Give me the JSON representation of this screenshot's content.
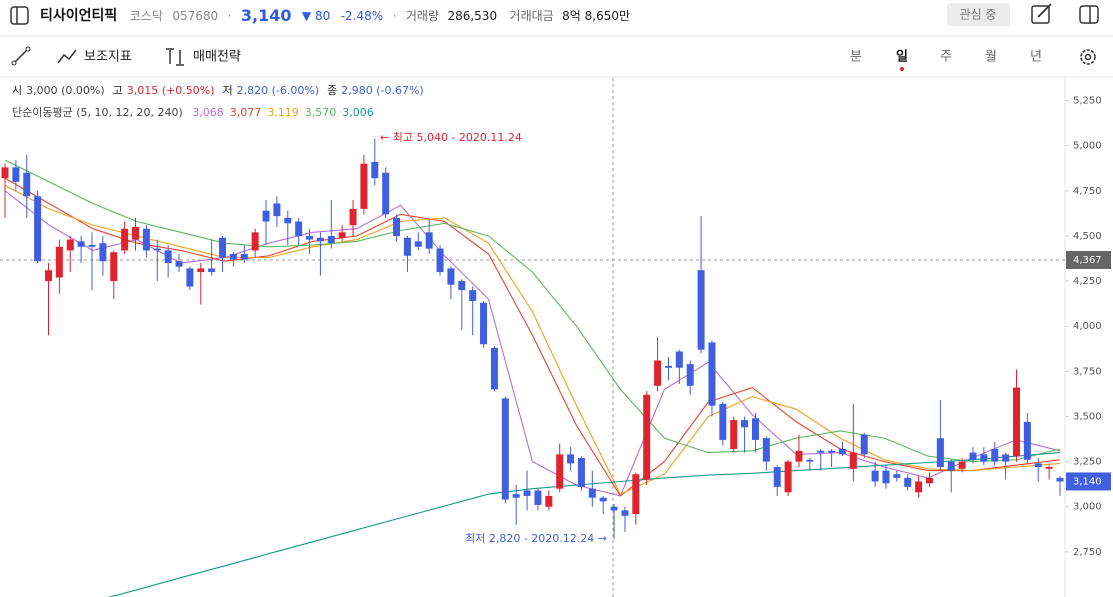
{
  "header": {
    "title": "티사이언티픽",
    "market": "코스닥",
    "code": "057680",
    "separator": "·",
    "price": "3,140",
    "change": "▼ 80",
    "change_rate": "-2.48%",
    "volume_label": "거래량",
    "volume": "286,530",
    "amount_label": "거래대금",
    "amount": "8억 8,650만",
    "watch_button": "관심 중"
  },
  "toolbar": {
    "indicators": "보조지표",
    "strategy": "매매전략",
    "periods": [
      "분",
      "일",
      "주",
      "월",
      "년"
    ]
  },
  "chart_data": {
    "type": "candlestick",
    "info": [
      {
        "label": "시",
        "value": "3,000 (0.00%)"
      },
      {
        "label": "고",
        "value": "3,015 (+0.50%)"
      },
      {
        "label": "저",
        "value": "2,820 (-6.00%)"
      },
      {
        "label": "종",
        "value": "2,980 (-0.67%)"
      }
    ],
    "ma_title": "단순이동평균 (5, 10, 12, 20, 240)",
    "up_color": "#e0242f",
    "down_color": "#3f5fe0",
    "candles": {
      "open": [
        4820,
        4880,
        4850,
        4720,
        4250,
        4270,
        4420,
        4470,
        4450,
        4460,
        4250,
        4420,
        4480,
        4540,
        4430,
        4420,
        4360,
        4320,
        4300,
        4320,
        4490,
        4400,
        4400,
        4420,
        4640,
        4680,
        4600,
        4580,
        4500,
        4490,
        4500,
        4490,
        4560,
        4650,
        4910,
        4850,
        4600,
        4490,
        4470,
        4520,
        4430,
        4320,
        4250,
        4200,
        4130,
        3880,
        3600,
        3070,
        3090,
        3090,
        3000,
        3100,
        3290,
        3270,
        3100,
        3050,
        3000,
        2980,
        2960,
        3150,
        3670,
        3780,
        3860,
        3790,
        4310,
        3910,
        3570,
        3320,
        3480,
        3490,
        3380,
        3220,
        3080,
        3250,
        3260,
        3310,
        3310,
        3320,
        3210,
        3400,
        3200,
        3200,
        3180,
        3160,
        3080,
        3130,
        3380,
        3250,
        3210,
        3300,
        3290,
        3320,
        3290,
        3280,
        3470,
        3240,
        3210,
        3160
      ],
      "high": [
        4900,
        4920,
        4950,
        4750,
        4350,
        4480,
        4500,
        4500,
        4520,
        4500,
        4420,
        4580,
        4600,
        4560,
        4480,
        4450,
        4400,
        4330,
        4350,
        4480,
        4500,
        4410,
        4450,
        4540,
        4700,
        4720,
        4640,
        4600,
        4540,
        4520,
        4700,
        4560,
        4700,
        4950,
        5040,
        4880,
        4620,
        4500,
        4520,
        4600,
        4450,
        4330,
        4260,
        4220,
        4140,
        3890,
        3610,
        3120,
        3200,
        3100,
        3090,
        3350,
        3330,
        3280,
        3200,
        3060,
        3015,
        3000,
        3190,
        3640,
        3940,
        3830,
        3870,
        3810,
        4610,
        3920,
        3580,
        3500,
        3500,
        3520,
        3390,
        3230,
        3260,
        3400,
        3270,
        3320,
        3320,
        3360,
        3570,
        3410,
        3250,
        3230,
        3200,
        3180,
        3170,
        3190,
        3590,
        3260,
        3270,
        3330,
        3330,
        3360,
        3300,
        3760,
        3520,
        3270,
        3230,
        3170
      ],
      "low": [
        4600,
        4750,
        4600,
        4350,
        3950,
        4180,
        4300,
        4350,
        4200,
        4280,
        4150,
        4400,
        4420,
        4380,
        4250,
        4270,
        4300,
        4200,
        4120,
        4280,
        4300,
        4330,
        4350,
        4380,
        4450,
        4550,
        4450,
        4450,
        4400,
        4280,
        4430,
        4470,
        4500,
        4620,
        4780,
        4600,
        4470,
        4300,
        4420,
        4400,
        4280,
        4150,
        3980,
        3950,
        3880,
        3640,
        3020,
        2900,
        2980,
        2980,
        2980,
        3080,
        3200,
        3090,
        3000,
        2960,
        2820,
        2860,
        2900,
        3120,
        3640,
        3700,
        3680,
        3620,
        3850,
        3500,
        3340,
        3300,
        3300,
        3300,
        3200,
        3060,
        3060,
        3220,
        3200,
        3200,
        3220,
        3280,
        3140,
        3270,
        3110,
        3100,
        3140,
        3090,
        3050,
        3110,
        3200,
        3080,
        3190,
        3240,
        3230,
        3230,
        3150,
        3250,
        3240,
        3140,
        3150,
        3060
      ],
      "close": [
        4880,
        4800,
        4720,
        4360,
        4310,
        4440,
        4480,
        4440,
        4440,
        4360,
        4410,
        4540,
        4550,
        4420,
        4420,
        4350,
        4330,
        4220,
        4320,
        4300,
        4380,
        4370,
        4370,
        4520,
        4580,
        4610,
        4570,
        4500,
        4480,
        4470,
        4460,
        4520,
        4650,
        4900,
        4820,
        4620,
        4500,
        4390,
        4440,
        4430,
        4300,
        4230,
        4200,
        4140,
        3900,
        3650,
        3040,
        3050,
        3060,
        3010,
        3060,
        3290,
        3240,
        3110,
        3050,
        3030,
        2980,
        2950,
        3180,
        3620,
        3810,
        3770,
        3770,
        3670,
        3870,
        3560,
        3370,
        3480,
        3440,
        3370,
        3250,
        3110,
        3250,
        3310,
        3250,
        3300,
        3300,
        3290,
        3300,
        3290,
        3140,
        3130,
        3160,
        3110,
        3140,
        3160,
        3220,
        3200,
        3250,
        3260,
        3250,
        3250,
        3250,
        3660,
        3260,
        3220,
        3220,
        3140
      ]
    },
    "series": [
      {
        "color": "#b86fdc",
        "legend_value": {
          "value": 3068,
          "label": "3,068"
        },
        "values": [
          4750,
          4560,
          4420,
          4480,
          4350,
          4380,
          4460,
          4520,
          4540,
          4670,
          4390,
          4150,
          3250,
          3120,
          3060,
          3650,
          3800,
          3510,
          3290,
          3300,
          3220,
          3160,
          3270,
          3370,
          3310
        ]
      },
      {
        "color": "#e8452c",
        "legend_value": {
          "value": 3077,
          "label": "3,077"
        },
        "values": [
          4820,
          4680,
          4540,
          4460,
          4420,
          4360,
          4390,
          4470,
          4500,
          4620,
          4580,
          4400,
          3950,
          3450,
          3060,
          3250,
          3580,
          3660,
          3470,
          3320,
          3250,
          3200,
          3200,
          3230,
          3260
        ]
      },
      {
        "color": "#f0a020",
        "legend_value": {
          "value": 3119,
          "label": "3,119"
        },
        "values": [
          4780,
          4650,
          4560,
          4500,
          4440,
          4380,
          4380,
          4440,
          4480,
          4580,
          4600,
          4460,
          4080,
          3560,
          3070,
          3180,
          3500,
          3610,
          3540,
          3380,
          3260,
          3210,
          3200,
          3220,
          3240
        ]
      },
      {
        "color": "#5cb85c",
        "legend_value": {
          "value": 3570,
          "label": "3,570"
        },
        "values": [
          4920,
          4800,
          4680,
          4580,
          4520,
          4460,
          4440,
          4450,
          4470,
          4530,
          4570,
          4500,
          4300,
          4000,
          3650,
          3380,
          3300,
          3310,
          3380,
          3420,
          3380,
          3280,
          3250,
          3260,
          3320
        ]
      },
      {
        "color": "#16998a",
        "legend_value": {
          "value": 3006,
          "label": "3,006"
        },
        "values": [
          null,
          null,
          2475,
          2540,
          2607,
          2673,
          2740,
          2806,
          2872,
          2938,
          3004,
          3070,
          3100,
          3120,
          3140,
          3160,
          3175,
          3185,
          3200,
          3215,
          3230,
          3245,
          3260,
          3280,
          3300
        ]
      }
    ],
    "ylim": [
      2500,
      5375
    ],
    "yticks": [
      {
        "value": 2750,
        "label": "2,750"
      },
      {
        "value": 3000,
        "label": "3,000"
      },
      {
        "value": 3250,
        "label": "3,250"
      },
      {
        "value": 3500,
        "label": "3,500"
      },
      {
        "value": 3750,
        "label": "3,750"
      },
      {
        "value": 4000,
        "label": "4,000"
      },
      {
        "value": 4250,
        "label": "4,250"
      },
      {
        "value": 4500,
        "label": "4,500"
      },
      {
        "value": 4750,
        "label": "4,750"
      },
      {
        "value": 5000,
        "label": "5,000"
      },
      {
        "value": 5250,
        "label": "5,250"
      }
    ],
    "annotations": {
      "high": "← 최고 5,040 - 2020.11.24",
      "low": "최저 2,820 - 2020.12.24 →"
    },
    "current_price": {
      "value": 3140,
      "label": "3,140"
    },
    "crosshair": {
      "value": 4367,
      "label": "4,367"
    }
  }
}
